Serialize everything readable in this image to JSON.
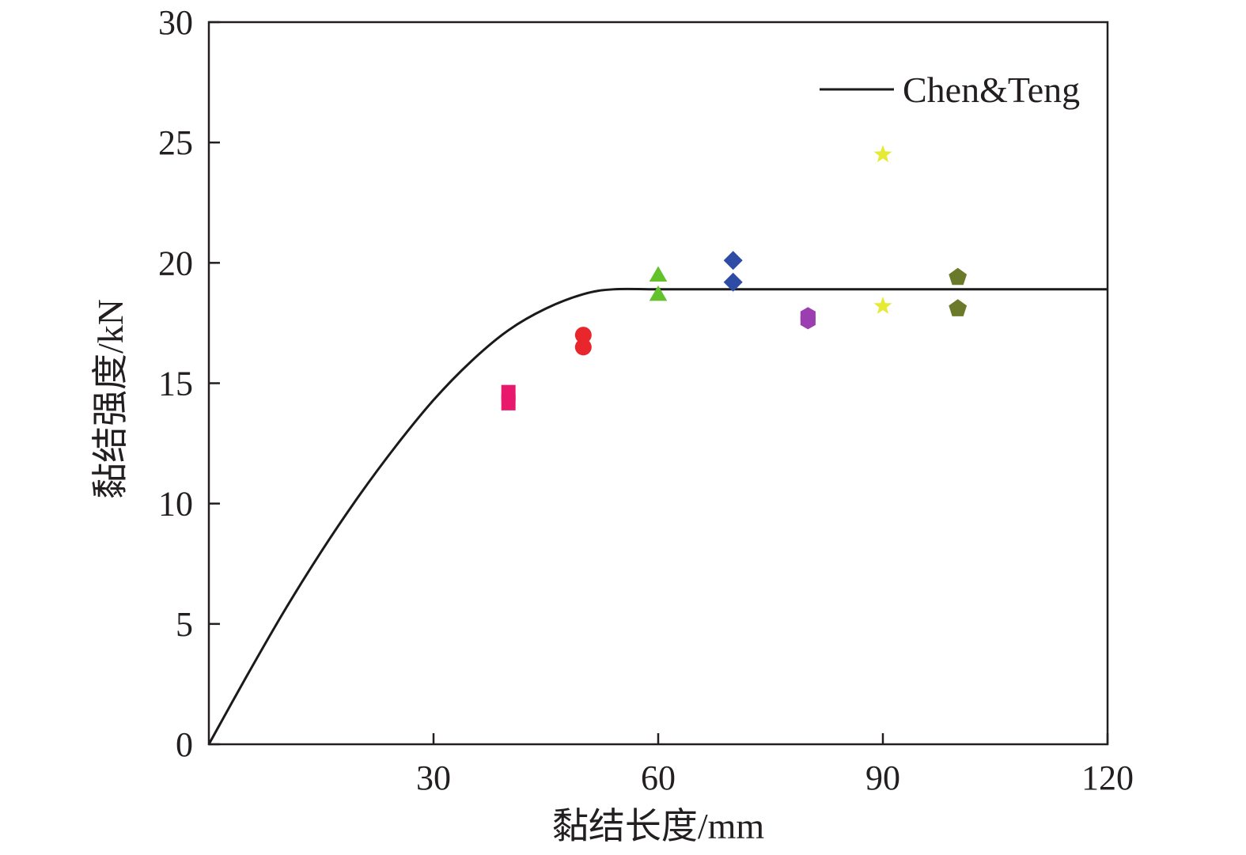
{
  "chart_data": {
    "type": "scatter",
    "xlabel": "黏结长度/mm",
    "ylabel": "黏结强度/kN",
    "xlim": [
      0,
      120
    ],
    "ylim": [
      0,
      30
    ],
    "x_ticks": [
      "30",
      "60",
      "90",
      "120"
    ],
    "y_ticks": [
      "0",
      "5",
      "10",
      "15",
      "20",
      "25",
      "30"
    ],
    "x_tick_values": [
      30,
      60,
      90,
      120
    ],
    "y_tick_values": [
      0,
      5,
      10,
      15,
      20,
      25,
      30
    ],
    "grid": false,
    "legend_position": "top-right",
    "curve": {
      "name": "Chen&Teng",
      "color": "#1a1a1a",
      "x": [
        0,
        5,
        10,
        15,
        20,
        25,
        30,
        35,
        40,
        45,
        50,
        54,
        60,
        70,
        80,
        90,
        100,
        110,
        120
      ],
      "y": [
        0,
        2.8,
        5.5,
        8.0,
        10.3,
        12.4,
        14.3,
        15.9,
        17.2,
        18.1,
        18.7,
        18.9,
        18.9,
        18.9,
        18.9,
        18.9,
        18.9,
        18.9,
        18.9
      ]
    },
    "points": [
      {
        "x": 40,
        "y": 14.6,
        "marker": "rect",
        "color": "#e8186d"
      },
      {
        "x": 40,
        "y": 14.2,
        "marker": "rect",
        "color": "#e8186d"
      },
      {
        "x": 50,
        "y": 17.0,
        "marker": "circle",
        "color": "#e8262b"
      },
      {
        "x": 50,
        "y": 16.5,
        "marker": "circle",
        "color": "#e8262b"
      },
      {
        "x": 60,
        "y": 19.5,
        "marker": "triangle",
        "color": "#63c22b"
      },
      {
        "x": 60,
        "y": 18.7,
        "marker": "triangle",
        "color": "#63c22b"
      },
      {
        "x": 70,
        "y": 20.1,
        "marker": "diamond",
        "color": "#2e4ca6"
      },
      {
        "x": 70,
        "y": 19.2,
        "marker": "diamond",
        "color": "#2e4ca6"
      },
      {
        "x": 80,
        "y": 17.8,
        "marker": "hexagon",
        "color": "#9b3fb0"
      },
      {
        "x": 80,
        "y": 17.6,
        "marker": "hexagon",
        "color": "#9b3fb0"
      },
      {
        "x": 90,
        "y": 24.5,
        "marker": "star",
        "color": "#e6ea35"
      },
      {
        "x": 90,
        "y": 18.2,
        "marker": "star",
        "color": "#e6ea35"
      },
      {
        "x": 100,
        "y": 19.4,
        "marker": "pentagon",
        "color": "#6b7a2a"
      },
      {
        "x": 100,
        "y": 18.1,
        "marker": "pentagon",
        "color": "#6b7a2a"
      }
    ]
  }
}
